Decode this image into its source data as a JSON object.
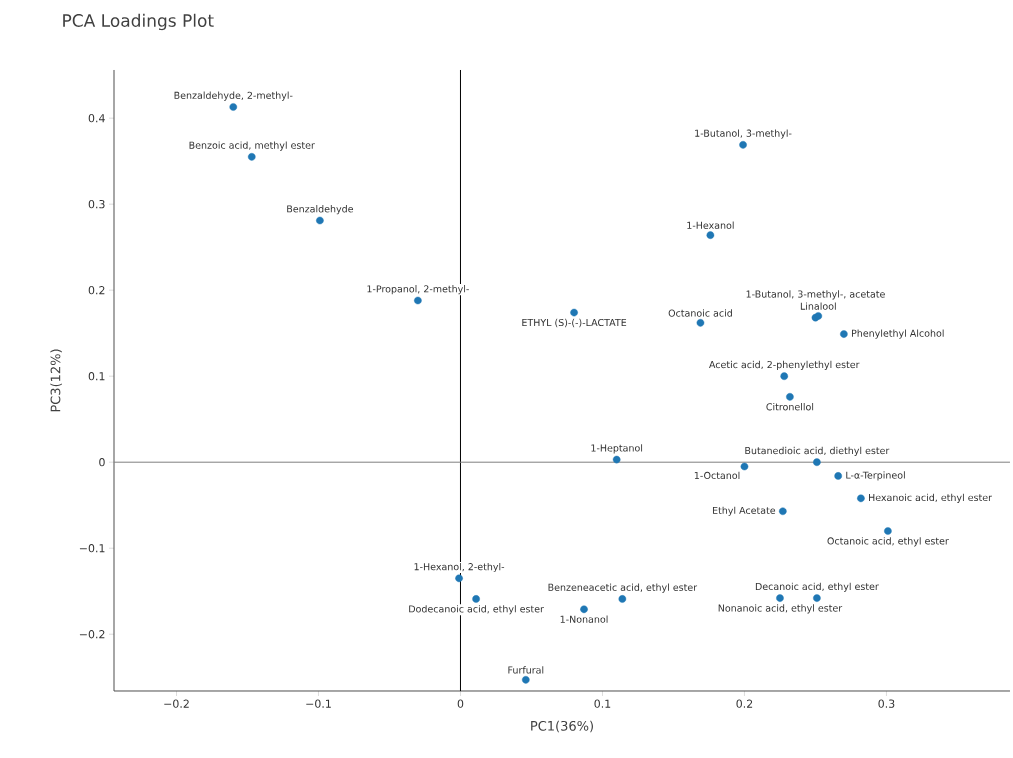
{
  "chart_data": {
    "type": "scatter",
    "title": "PCA Loadings Plot",
    "xlabel": "PC1(36%)",
    "ylabel": "PC3(12%)",
    "xlim": [
      -0.244,
      0.387
    ],
    "ylim": [
      -0.266,
      0.456
    ],
    "xticks": [
      {
        "value": -0.2,
        "label": "−0.2"
      },
      {
        "value": -0.1,
        "label": "−0.1"
      },
      0,
      0.1,
      0.2,
      0.3
    ],
    "yticks": [
      {
        "value": -0.2,
        "label": "−0.2"
      },
      {
        "value": -0.1,
        "label": "−0.1"
      },
      0,
      0.1,
      0.2,
      0.3,
      0.4
    ],
    "marker": "circle",
    "series": [
      {
        "color": "#1f77b4",
        "x": [
          -0.16,
          -0.147,
          -0.099,
          -0.03,
          0.08,
          0.199,
          0.176,
          0.169,
          0.25,
          0.252,
          0.27,
          0.228,
          0.232,
          0.11,
          0.2,
          0.251,
          0.266,
          0.282,
          0.227,
          0.301,
          -0.001,
          0.011,
          0.087,
          0.114,
          0.225,
          0.251,
          0.046
        ],
        "values": [
          0.413,
          0.355,
          0.281,
          0.188,
          0.174,
          0.369,
          0.264,
          0.162,
          0.168,
          0.17,
          0.149,
          0.1,
          0.076,
          0.003,
          -0.005,
          0.0,
          -0.016,
          -0.042,
          -0.057,
          -0.08,
          -0.135,
          -0.159,
          -0.171,
          -0.159,
          -0.158,
          -0.158,
          -0.253
        ]
      }
    ],
    "ref_lines": [
      {
        "axis": "x",
        "value": 0,
        "color": "#000000"
      },
      {
        "axis": "y",
        "value": 0,
        "color": "#808080"
      }
    ],
    "annotations": [
      {
        "text": "Benzaldehyde, 2-methyl-",
        "x": -0.16,
        "y": 0.413
      },
      {
        "text": "Benzoic acid, methyl ester",
        "x": -0.147,
        "y": 0.355
      },
      {
        "text": "Benzaldehyde",
        "x": -0.099,
        "y": 0.281
      },
      {
        "text": "1-Propanol, 2-methyl-",
        "x": -0.03,
        "y": 0.188
      },
      {
        "text": "ETHYL (S)-(-)-LACTATE",
        "x": 0.08,
        "y": 0.174
      },
      {
        "text": "1-Butanol, 3-methyl-",
        "x": 0.199,
        "y": 0.369
      },
      {
        "text": "1-Hexanol",
        "x": 0.176,
        "y": 0.264
      },
      {
        "text": "Octanoic acid",
        "x": 0.169,
        "y": 0.162
      },
      {
        "text": "1-Butanol, 3-methyl-, acetate",
        "x": 0.25,
        "y": 0.168
      },
      {
        "text": "Linalool",
        "x": 0.252,
        "y": 0.17
      },
      {
        "text": "Phenylethyl Alcohol",
        "x": 0.27,
        "y": 0.149
      },
      {
        "text": "Acetic acid, 2-phenylethyl ester",
        "x": 0.228,
        "y": 0.1
      },
      {
        "text": "Citronellol",
        "x": 0.232,
        "y": 0.076
      },
      {
        "text": "1-Heptanol",
        "x": 0.11,
        "y": 0.003
      },
      {
        "text": "1-Octanol",
        "x": 0.2,
        "y": -0.005
      },
      {
        "text": "Butanedioic acid, diethyl ester",
        "x": 0.251,
        "y": 0.0
      },
      {
        "text": "L-α-Terpineol",
        "x": 0.266,
        "y": -0.016
      },
      {
        "text": "Hexanoic acid, ethyl ester",
        "x": 0.282,
        "y": -0.042
      },
      {
        "text": "Ethyl Acetate",
        "x": 0.227,
        "y": -0.057
      },
      {
        "text": "Octanoic acid, ethyl ester",
        "x": 0.301,
        "y": -0.08
      },
      {
        "text": "1-Hexanol, 2-ethyl-",
        "x": -0.001,
        "y": -0.135
      },
      {
        "text": "Dodecanoic acid, ethyl ester",
        "x": 0.011,
        "y": -0.159
      },
      {
        "text": "1-Nonanol",
        "x": 0.087,
        "y": -0.171
      },
      {
        "text": "Benzeneacetic acid, ethyl ester",
        "x": 0.114,
        "y": -0.159
      },
      {
        "text": "Nonanoic acid, ethyl ester",
        "x": 0.225,
        "y": -0.158
      },
      {
        "text": "Decanoic acid, ethyl ester",
        "x": 0.251,
        "y": -0.158
      },
      {
        "text": "Furfural",
        "x": 0.046,
        "y": -0.253
      }
    ]
  }
}
